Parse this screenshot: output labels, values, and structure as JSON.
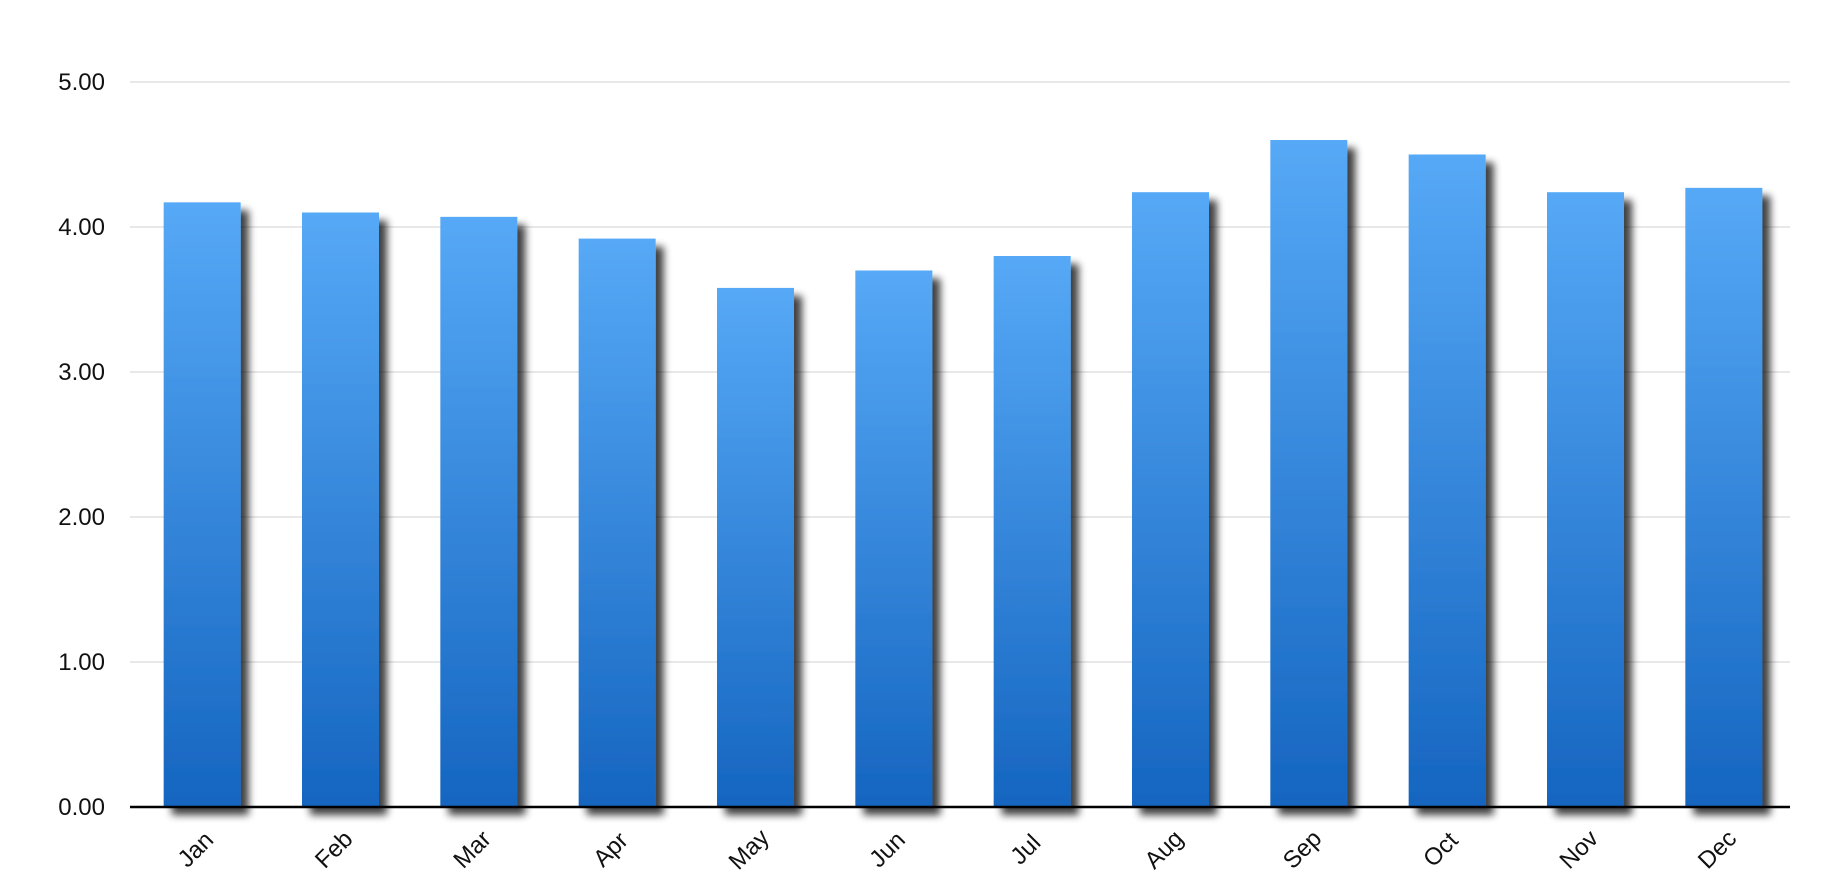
{
  "chart_data": {
    "type": "bar",
    "categories": [
      "Jan",
      "Feb",
      "Mar",
      "Apr",
      "May",
      "Jun",
      "Jul",
      "Aug",
      "Sep",
      "Oct",
      "Nov",
      "Dec"
    ],
    "values": [
      4.17,
      4.1,
      4.07,
      3.92,
      3.58,
      3.7,
      3.8,
      4.24,
      4.6,
      4.5,
      4.24,
      4.27
    ],
    "y_ticks": [
      "0.00",
      "1.00",
      "2.00",
      "3.00",
      "4.00",
      "5.00"
    ],
    "ylim": [
      0,
      5
    ],
    "grid": true,
    "legend": "none",
    "bar_color_top": "#56a9f6",
    "bar_color_bottom": "#1565c0",
    "gridline_color": "#d9d9d9",
    "axis_color": "#000000"
  }
}
